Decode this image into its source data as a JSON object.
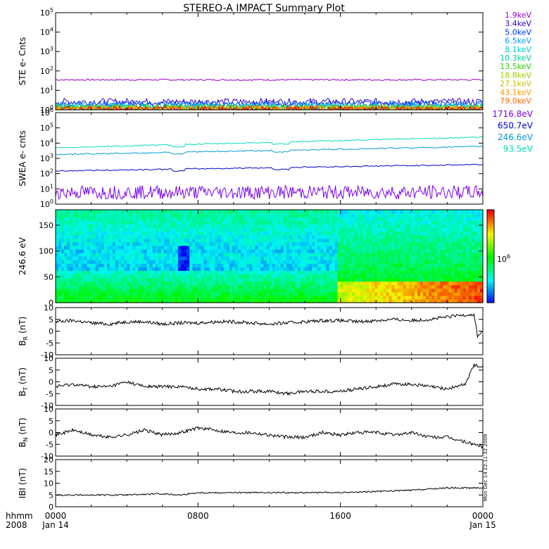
{
  "title": "STEREO-A IMPACT Summary Plot",
  "timestamp": "Mon Dec 14 22:11:32 2009",
  "colors": {
    "ste": [
      "#9900cc",
      "#3300cc",
      "#0033ff",
      "#0099ff",
      "#00cccc",
      "#00cc99",
      "#33cc00",
      "#99cc00",
      "#ccbb00",
      "#ff9900",
      "#ff6600",
      "#cc0000"
    ],
    "swea": [
      "#7a00ee",
      "#0000cc",
      "#0099dd",
      "#00ddbb"
    ]
  },
  "chart_data": [
    {
      "id": "ste",
      "type": "line",
      "ylabel": "STE e- Cnts",
      "yscale": "log",
      "ylim": [
        1,
        100000
      ],
      "yticks": [
        "10^0",
        "10^1",
        "10^2",
        "10^3",
        "10^4",
        "10^5"
      ],
      "legend_placement": "right",
      "series": [
        {
          "name": "1.9keV",
          "level": 35
        },
        {
          "name": "3.4keV",
          "level": 2.6
        },
        {
          "name": "5.0keV",
          "level": 2.0
        },
        {
          "name": "6.5keV",
          "level": 1.7
        },
        {
          "name": "8.1keV",
          "level": 1.5
        },
        {
          "name": "10.3keV",
          "level": 1.35
        },
        {
          "name": "13.5keV",
          "level": 1.25
        },
        {
          "name": "18.8keV",
          "level": 1.2
        },
        {
          "name": "27.1keV",
          "level": 1.15
        },
        {
          "name": "43.1keV",
          "level": 1.1
        },
        {
          "name": "79.0keV",
          "level": 1.05
        },
        {
          "name": "",
          "level": 1.0
        }
      ]
    },
    {
      "id": "swea",
      "type": "line",
      "ylabel": "SWEA e- cnts",
      "yscale": "log",
      "ylim": [
        1,
        1000000
      ],
      "yticks": [
        "10^0",
        "10^1",
        "10^2",
        "10^3",
        "10^4",
        "10^5",
        "10^6"
      ],
      "legend_placement": "right",
      "series": [
        {
          "name": "1716.8eV",
          "start": 6,
          "end": 6
        },
        {
          "name": "650.7eV",
          "start": 150,
          "end": 400
        },
        {
          "name": "246.6eV",
          "start": 1800,
          "end": 6000
        },
        {
          "name": "93.5eV",
          "start": 5000,
          "end": 25000
        }
      ]
    },
    {
      "id": "pad",
      "type": "heatmap",
      "ylabel": "246.6 eV",
      "ylim": [
        0,
        180
      ],
      "yticks": [
        "0",
        "50",
        "100",
        "150"
      ],
      "colorbar_label": "10^6"
    },
    {
      "id": "br",
      "type": "line",
      "ylabel": "B_R (nT)",
      "ylim": [
        -10,
        10
      ],
      "yticks": [
        "-10",
        "-5",
        "0",
        "5",
        "10"
      ],
      "points": [
        [
          0,
          4
        ],
        [
          1,
          4.5
        ],
        [
          2,
          3.5
        ],
        [
          3,
          3
        ],
        [
          4,
          4
        ],
        [
          5,
          4
        ],
        [
          6,
          3
        ],
        [
          7,
          3.5
        ],
        [
          8,
          3.5
        ],
        [
          9,
          4
        ],
        [
          10,
          4
        ],
        [
          11,
          3.5
        ],
        [
          12,
          3
        ],
        [
          13,
          3.5
        ],
        [
          14,
          4
        ],
        [
          15,
          4.5
        ],
        [
          16,
          4.5
        ],
        [
          17,
          4
        ],
        [
          18,
          4.5
        ],
        [
          19,
          5
        ],
        [
          20,
          4.5
        ],
        [
          21,
          5
        ],
        [
          22,
          6
        ],
        [
          23,
          7
        ],
        [
          23.5,
          7
        ],
        [
          23.7,
          -2
        ],
        [
          24,
          0
        ]
      ]
    },
    {
      "id": "bt",
      "type": "line",
      "ylabel": "B_T (nT)",
      "ylim": [
        -10,
        10
      ],
      "yticks": [
        "-10",
        "-5",
        "0",
        "5",
        "10"
      ],
      "points": [
        [
          0,
          -2
        ],
        [
          1,
          -1
        ],
        [
          2,
          -2
        ],
        [
          3,
          -2
        ],
        [
          4,
          0
        ],
        [
          5,
          -2
        ],
        [
          6,
          -2
        ],
        [
          7,
          -2
        ],
        [
          8,
          -3
        ],
        [
          9,
          -3
        ],
        [
          10,
          -4
        ],
        [
          11,
          -4
        ],
        [
          12,
          -4
        ],
        [
          13,
          -5
        ],
        [
          14,
          -4
        ],
        [
          15,
          -4
        ],
        [
          16,
          -4
        ],
        [
          17,
          -3
        ],
        [
          18,
          -2
        ],
        [
          19,
          -1
        ],
        [
          20,
          -1
        ],
        [
          21,
          -2
        ],
        [
          22,
          -3
        ],
        [
          23,
          -1
        ],
        [
          23.5,
          7
        ],
        [
          24,
          7
        ]
      ]
    },
    {
      "id": "bn",
      "type": "line",
      "ylabel": "B_N (nT)",
      "ylim": [
        -10,
        10
      ],
      "yticks": [
        "-10",
        "-5",
        "0",
        "5",
        "10"
      ],
      "points": [
        [
          0,
          -1
        ],
        [
          1,
          1
        ],
        [
          2,
          -1
        ],
        [
          3,
          -2
        ],
        [
          4,
          -1
        ],
        [
          5,
          1
        ],
        [
          6,
          -1
        ],
        [
          7,
          0
        ],
        [
          8,
          2
        ],
        [
          9,
          1
        ],
        [
          10,
          0
        ],
        [
          11,
          0
        ],
        [
          12,
          -1
        ],
        [
          13,
          -2
        ],
        [
          14,
          -2
        ],
        [
          15,
          0
        ],
        [
          16,
          -1
        ],
        [
          17,
          0
        ],
        [
          18,
          0
        ],
        [
          19,
          -1
        ],
        [
          20,
          0
        ],
        [
          21,
          -2
        ],
        [
          22,
          -2
        ],
        [
          23,
          -4
        ],
        [
          24,
          -6
        ]
      ]
    },
    {
      "id": "bmag",
      "type": "line",
      "ylabel": "IBI (nT)",
      "ylim": [
        0,
        20
      ],
      "yticks": [
        "0",
        "5",
        "10",
        "15",
        "20"
      ],
      "points": [
        [
          0,
          5
        ],
        [
          2,
          5
        ],
        [
          4,
          5
        ],
        [
          6,
          5.5
        ],
        [
          7,
          5
        ],
        [
          8,
          6
        ],
        [
          10,
          6
        ],
        [
          12,
          6
        ],
        [
          14,
          6
        ],
        [
          16,
          6
        ],
        [
          18,
          6.5
        ],
        [
          20,
          7
        ],
        [
          22,
          8
        ],
        [
          24,
          8
        ]
      ]
    }
  ],
  "xaxis": {
    "range_hours": [
      0,
      24
    ],
    "ticks": [
      {
        "hour": 0,
        "hhmm": "0000",
        "date": "Jan 14"
      },
      {
        "hour": 8,
        "hhmm": "0800",
        "date": ""
      },
      {
        "hour": 16,
        "hhmm": "1600",
        "date": ""
      },
      {
        "hour": 24,
        "hhmm": "0000",
        "date": "Jan 15"
      }
    ],
    "row_label_1": "hhmm",
    "row_label_2": "2008"
  }
}
